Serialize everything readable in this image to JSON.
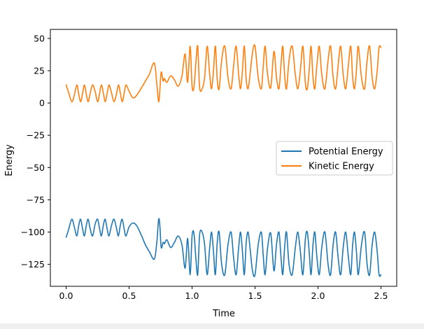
{
  "chart_data": {
    "type": "line",
    "title": "",
    "xlabel": "Time",
    "ylabel": "Energy",
    "xlim": [
      -0.125,
      2.625
    ],
    "ylim": [
      -142,
      57
    ],
    "xticks": [
      0.0,
      0.5,
      1.0,
      1.5,
      2.0,
      2.5
    ],
    "xtick_labels": [
      "0.0",
      "0.5",
      "1.0",
      "1.5",
      "2.0",
      "2.5"
    ],
    "yticks": [
      50,
      25,
      0,
      -25,
      -50,
      -75,
      -100,
      -125
    ],
    "ytick_labels": [
      "50",
      "25",
      "0",
      "−25",
      "−50",
      "−75",
      "−100",
      "−125"
    ],
    "legend_position": "center-right",
    "series": [
      {
        "name": "Potential Energy",
        "color": "#1f77b4",
        "x": [
          0.0,
          0.02,
          0.045,
          0.065,
          0.085,
          0.1,
          0.115,
          0.13,
          0.145,
          0.16,
          0.175,
          0.19,
          0.21,
          0.23,
          0.25,
          0.265,
          0.28,
          0.295,
          0.31,
          0.325,
          0.34,
          0.36,
          0.38,
          0.4,
          0.415,
          0.43,
          0.445,
          0.46,
          0.475,
          0.5,
          0.53,
          0.56,
          0.6,
          0.63,
          0.66,
          0.7,
          0.72,
          0.735,
          0.745,
          0.755,
          0.77,
          0.78,
          0.8,
          0.83,
          0.86,
          0.89,
          0.92,
          0.945,
          0.965,
          0.985,
          1.0,
          1.015,
          1.03,
          1.045,
          1.06,
          1.08,
          1.1,
          1.12,
          1.14,
          1.155,
          1.17,
          1.185,
          1.2,
          1.215,
          1.235,
          1.26,
          1.285,
          1.31,
          1.33,
          1.35,
          1.37,
          1.385,
          1.4,
          1.415,
          1.43,
          1.445,
          1.46,
          1.48,
          1.5,
          1.525,
          1.55,
          1.565,
          1.58,
          1.6,
          1.625,
          1.65,
          1.67,
          1.69,
          1.705,
          1.72,
          1.735,
          1.75,
          1.77,
          1.795,
          1.82,
          1.84,
          1.86,
          1.88,
          1.9,
          1.915,
          1.93,
          1.945,
          1.96,
          1.975,
          1.99,
          2.01,
          2.03,
          2.055,
          2.08,
          2.1,
          2.12,
          2.14,
          2.16,
          2.18,
          2.2,
          2.22,
          2.24,
          2.26,
          2.275,
          2.29,
          2.305,
          2.32,
          2.345,
          2.37,
          2.39,
          2.41,
          2.43,
          2.45,
          2.47,
          2.485,
          2.5
        ],
        "values": [
          -104,
          -98,
          -90,
          -96,
          -103,
          -95,
          -90,
          -97,
          -103,
          -95,
          -90,
          -97,
          -103,
          -94,
          -90,
          -97,
          -103,
          -95,
          -90,
          -97,
          -103,
          -95,
          -90,
          -97,
          -103,
          -95,
          -90,
          -97,
          -103,
          -96,
          -93,
          -95,
          -103,
          -110,
          -115,
          -121,
          -108,
          -90,
          -96,
          -112,
          -108,
          -109,
          -106,
          -112,
          -108,
          -103,
          -110,
          -128,
          -105,
          -133,
          -103,
          -101,
          -120,
          -133,
          -102,
          -100,
          -110,
          -133,
          -112,
          -100,
          -115,
          -133,
          -108,
          -100,
          -125,
          -133,
          -110,
          -100,
          -120,
          -133,
          -112,
          -100,
          -115,
          -133,
          -108,
          -100,
          -112,
          -130,
          -133,
          -110,
          -100,
          -118,
          -133,
          -112,
          -101,
          -130,
          -110,
          -100,
          -118,
          -133,
          -112,
          -100,
          -125,
          -133,
          -112,
          -100,
          -115,
          -133,
          -105,
          -100,
          -115,
          -133,
          -110,
          -100,
          -118,
          -133,
          -112,
          -100,
          -125,
          -133,
          -110,
          -100,
          -120,
          -133,
          -112,
          -100,
          -118,
          -133,
          -110,
          -100,
          -115,
          -133,
          -110,
          -100,
          -125,
          -133,
          -110,
          -100,
          -115,
          -133,
          -133
        ]
      },
      {
        "name": "Kinetic Energy",
        "color": "#ff7f0e",
        "x": [
          0.0,
          0.02,
          0.045,
          0.065,
          0.085,
          0.1,
          0.115,
          0.13,
          0.145,
          0.16,
          0.175,
          0.19,
          0.21,
          0.23,
          0.25,
          0.265,
          0.28,
          0.295,
          0.31,
          0.325,
          0.34,
          0.36,
          0.38,
          0.4,
          0.415,
          0.43,
          0.445,
          0.46,
          0.475,
          0.5,
          0.53,
          0.56,
          0.6,
          0.63,
          0.66,
          0.7,
          0.72,
          0.735,
          0.745,
          0.755,
          0.77,
          0.78,
          0.8,
          0.83,
          0.86,
          0.89,
          0.92,
          0.945,
          0.965,
          0.985,
          1.0,
          1.015,
          1.03,
          1.045,
          1.06,
          1.08,
          1.1,
          1.12,
          1.14,
          1.155,
          1.17,
          1.185,
          1.2,
          1.215,
          1.235,
          1.26,
          1.285,
          1.31,
          1.33,
          1.35,
          1.37,
          1.385,
          1.4,
          1.415,
          1.43,
          1.445,
          1.46,
          1.48,
          1.5,
          1.525,
          1.55,
          1.565,
          1.58,
          1.6,
          1.625,
          1.65,
          1.67,
          1.69,
          1.705,
          1.72,
          1.735,
          1.75,
          1.77,
          1.795,
          1.82,
          1.84,
          1.86,
          1.88,
          1.9,
          1.915,
          1.93,
          1.945,
          1.96,
          1.975,
          1.99,
          2.01,
          2.03,
          2.055,
          2.08,
          2.1,
          2.12,
          2.14,
          2.16,
          2.18,
          2.2,
          2.22,
          2.24,
          2.26,
          2.275,
          2.29,
          2.305,
          2.32,
          2.345,
          2.37,
          2.39,
          2.41,
          2.43,
          2.45,
          2.47,
          2.485,
          2.5
        ],
        "values": [
          14,
          8,
          1,
          6,
          14,
          7,
          1,
          7,
          14,
          7,
          1,
          7,
          14,
          9,
          1,
          7,
          14,
          8,
          1,
          7,
          14,
          8,
          1,
          7,
          14,
          8,
          1,
          7,
          14,
          9,
          4,
          6,
          12,
          17,
          22,
          31,
          15,
          1,
          11,
          24,
          17,
          19,
          16,
          21,
          18,
          13,
          21,
          38,
          16,
          44,
          13,
          12,
          31,
          44,
          12,
          11,
          20,
          44,
          22,
          11,
          25,
          44,
          18,
          11,
          33,
          44,
          20,
          11,
          29,
          44,
          22,
          11,
          25,
          44,
          18,
          11,
          22,
          39,
          44,
          20,
          11,
          28,
          44,
          22,
          12,
          40,
          20,
          11,
          28,
          44,
          22,
          11,
          33,
          44,
          22,
          11,
          25,
          44,
          15,
          11,
          25,
          44,
          20,
          11,
          28,
          44,
          22,
          11,
          33,
          44,
          20,
          11,
          29,
          44,
          22,
          11,
          28,
          44,
          20,
          11,
          25,
          44,
          20,
          11,
          33,
          44,
          20,
          11,
          25,
          43,
          43
        ]
      }
    ]
  }
}
